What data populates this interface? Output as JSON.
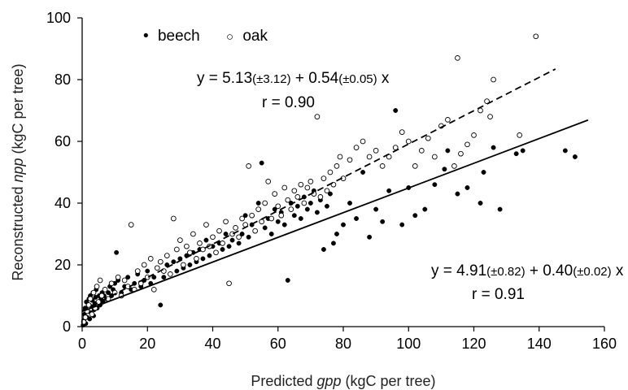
{
  "chart_data": {
    "type": "scatter",
    "title": "",
    "xlabel": {
      "prefix": "Predicted ",
      "variable": "gpp",
      "suffix": " (kgC per tree)"
    },
    "ylabel": {
      "prefix": "Reconstructed ",
      "variable": "npp",
      "suffix": " (kgC per tree)"
    },
    "xlim": [
      0,
      160
    ],
    "ylim": [
      0,
      100
    ],
    "xticks": [
      0,
      20,
      40,
      60,
      80,
      100,
      120,
      140,
      160
    ],
    "yticks": [
      0,
      20,
      40,
      60,
      80,
      100
    ],
    "grid": false,
    "legend_position": "top-left",
    "legend": [
      {
        "symbol": "•",
        "label": "beech"
      },
      {
        "symbol": "○",
        "label": "oak"
      }
    ],
    "series": [
      {
        "name": "beech",
        "marker": "filled-circle",
        "color": "#000000",
        "points": [
          [
            0.3,
            0.5
          ],
          [
            0.5,
            2
          ],
          [
            0.7,
            4
          ],
          [
            0.9,
            6
          ],
          [
            1.1,
            1
          ],
          [
            1.3,
            8
          ],
          [
            1.5,
            3
          ],
          [
            1.7,
            5
          ],
          [
            1.9,
            7
          ],
          [
            2.1,
            9
          ],
          [
            2.3,
            2.5
          ],
          [
            2.5,
            10
          ],
          [
            2.7,
            4.5
          ],
          [
            2.9,
            6.5
          ],
          [
            3.1,
            8.5
          ],
          [
            3.3,
            11
          ],
          [
            3.5,
            3.5
          ],
          [
            3.7,
            5.5
          ],
          [
            3.9,
            7.5
          ],
          [
            4.1,
            9.5
          ],
          [
            4.3,
            12
          ],
          [
            4.6,
            6
          ],
          [
            4.9,
            8
          ],
          [
            5.2,
            10
          ],
          [
            5.5,
            7
          ],
          [
            5.8,
            9
          ],
          [
            6.1,
            11
          ],
          [
            6.4,
            8
          ],
          [
            6.7,
            10
          ],
          [
            7,
            12
          ],
          [
            7.5,
            9
          ],
          [
            8,
            11
          ],
          [
            8.5,
            13
          ],
          [
            9,
            10
          ],
          [
            9.5,
            12
          ],
          [
            10,
            14
          ],
          [
            10.5,
            24
          ],
          [
            11,
            15
          ],
          [
            12,
            11
          ],
          [
            13,
            13
          ],
          [
            14,
            16
          ],
          [
            15,
            12
          ],
          [
            16,
            14
          ],
          [
            17,
            17
          ],
          [
            18,
            13
          ],
          [
            19,
            15
          ],
          [
            20,
            18
          ],
          [
            21,
            14
          ],
          [
            22,
            16
          ],
          [
            23,
            19
          ],
          [
            24,
            7
          ],
          [
            25,
            16
          ],
          [
            26,
            20
          ],
          [
            27,
            17
          ],
          [
            28,
            21
          ],
          [
            29,
            18
          ],
          [
            30,
            22
          ],
          [
            31,
            19
          ],
          [
            32,
            23
          ],
          [
            33,
            20
          ],
          [
            34,
            24
          ],
          [
            35,
            21
          ],
          [
            36,
            25
          ],
          [
            37,
            22
          ],
          [
            38,
            28
          ],
          [
            39,
            23
          ],
          [
            40,
            26
          ],
          [
            41,
            24
          ],
          [
            42,
            27
          ],
          [
            43,
            25
          ],
          [
            44,
            30
          ],
          [
            45,
            26
          ],
          [
            46,
            28
          ],
          [
            47,
            32
          ],
          [
            48,
            27
          ],
          [
            49,
            30
          ],
          [
            50,
            36
          ],
          [
            51,
            29
          ],
          [
            52,
            33
          ],
          [
            53,
            31
          ],
          [
            54,
            40
          ],
          [
            55,
            53
          ],
          [
            56,
            32
          ],
          [
            57,
            35
          ],
          [
            58,
            30
          ],
          [
            59,
            38
          ],
          [
            60,
            34
          ],
          [
            61,
            37
          ],
          [
            62,
            33
          ],
          [
            63,
            15
          ],
          [
            64,
            40
          ],
          [
            65,
            36
          ],
          [
            66,
            39
          ],
          [
            67,
            35
          ],
          [
            68,
            42
          ],
          [
            69,
            38
          ],
          [
            70,
            40
          ],
          [
            71,
            44
          ],
          [
            72,
            37
          ],
          [
            73,
            41
          ],
          [
            74,
            25
          ],
          [
            75,
            39
          ],
          [
            76,
            43
          ],
          [
            77,
            27
          ],
          [
            78,
            30
          ],
          [
            80,
            33
          ],
          [
            82,
            40
          ],
          [
            84,
            35
          ],
          [
            86,
            50
          ],
          [
            88,
            29
          ],
          [
            90,
            38
          ],
          [
            92,
            34
          ],
          [
            94,
            44
          ],
          [
            96,
            70
          ],
          [
            98,
            33
          ],
          [
            100,
            45
          ],
          [
            102,
            36
          ],
          [
            105,
            38
          ],
          [
            108,
            46
          ],
          [
            111,
            51
          ],
          [
            112,
            57
          ],
          [
            115,
            43
          ],
          [
            118,
            45
          ],
          [
            122,
            40
          ],
          [
            123,
            50
          ],
          [
            126,
            58
          ],
          [
            128,
            38
          ],
          [
            133,
            56
          ],
          [
            135,
            57
          ],
          [
            148,
            57
          ],
          [
            151,
            55
          ]
        ]
      },
      {
        "name": "oak",
        "marker": "open-circle",
        "color": "#000000",
        "points": [
          [
            0.5,
            1.5
          ],
          [
            1,
            3
          ],
          [
            1.5,
            5
          ],
          [
            2,
            7
          ],
          [
            2.5,
            9
          ],
          [
            3,
            4
          ],
          [
            3.5,
            11
          ],
          [
            4,
            6
          ],
          [
            4.5,
            13
          ],
          [
            5,
            8
          ],
          [
            5.5,
            15
          ],
          [
            6,
            10
          ],
          [
            7,
            12
          ],
          [
            8,
            9
          ],
          [
            9,
            14
          ],
          [
            10,
            11
          ],
          [
            11,
            16
          ],
          [
            12,
            10
          ],
          [
            13,
            15
          ],
          [
            14,
            13
          ],
          [
            15,
            33
          ],
          [
            16,
            12
          ],
          [
            17,
            18
          ],
          [
            18,
            14
          ],
          [
            19,
            20
          ],
          [
            20,
            16
          ],
          [
            21,
            22
          ],
          [
            22,
            12
          ],
          [
            23,
            19
          ],
          [
            24,
            21
          ],
          [
            25,
            18
          ],
          [
            26,
            23
          ],
          [
            27,
            17
          ],
          [
            28,
            35
          ],
          [
            29,
            25
          ],
          [
            30,
            28
          ],
          [
            31,
            20
          ],
          [
            32,
            26
          ],
          [
            33,
            24
          ],
          [
            34,
            30
          ],
          [
            35,
            22
          ],
          [
            36,
            27
          ],
          [
            37,
            25
          ],
          [
            38,
            33
          ],
          [
            39,
            26
          ],
          [
            40,
            29
          ],
          [
            41,
            24
          ],
          [
            42,
            31
          ],
          [
            43,
            27
          ],
          [
            44,
            34
          ],
          [
            45,
            14
          ],
          [
            46,
            30
          ],
          [
            47,
            32
          ],
          [
            48,
            29
          ],
          [
            49,
            35
          ],
          [
            50,
            33
          ],
          [
            51,
            52
          ],
          [
            52,
            36
          ],
          [
            53,
            31
          ],
          [
            54,
            38
          ],
          [
            55,
            34
          ],
          [
            56,
            40
          ],
          [
            57,
            47
          ],
          [
            58,
            35
          ],
          [
            59,
            43
          ],
          [
            60,
            39
          ],
          [
            61,
            36
          ],
          [
            62,
            45
          ],
          [
            63,
            41
          ],
          [
            64,
            38
          ],
          [
            65,
            44
          ],
          [
            66,
            42
          ],
          [
            67,
            46
          ],
          [
            68,
            40
          ],
          [
            69,
            45
          ],
          [
            70,
            47
          ],
          [
            71,
            43
          ],
          [
            72,
            68
          ],
          [
            73,
            42
          ],
          [
            74,
            48
          ],
          [
            75,
            44
          ],
          [
            76,
            50
          ],
          [
            77,
            46
          ],
          [
            78,
            52
          ],
          [
            79,
            55
          ],
          [
            80,
            48
          ],
          [
            82,
            54
          ],
          [
            84,
            58
          ],
          [
            86,
            60
          ],
          [
            88,
            55
          ],
          [
            90,
            57
          ],
          [
            92,
            52
          ],
          [
            94,
            55
          ],
          [
            96,
            58
          ],
          [
            98,
            63
          ],
          [
            100,
            60
          ],
          [
            102,
            52
          ],
          [
            104,
            57
          ],
          [
            106,
            61
          ],
          [
            108,
            55
          ],
          [
            110,
            65
          ],
          [
            112,
            67
          ],
          [
            114,
            52
          ],
          [
            116,
            56
          ],
          [
            118,
            59
          ],
          [
            120,
            62
          ],
          [
            122,
            70
          ],
          [
            124,
            73
          ],
          [
            125,
            68
          ],
          [
            126,
            80
          ],
          [
            134,
            62
          ],
          [
            115,
            87
          ],
          [
            139,
            94
          ]
        ]
      }
    ],
    "fits": [
      {
        "series": "oak",
        "style": "dashed",
        "intercept": 5.13,
        "slope": 0.54,
        "x_range": [
          0,
          145
        ],
        "equation": {
          "a": "y = 5.13",
          "ase": "(±3.12)",
          "b": " + 0.54",
          "bse": "(±0.05)",
          "x": " x"
        },
        "r_text": "r = 0.90"
      },
      {
        "series": "beech",
        "style": "solid",
        "intercept": 4.91,
        "slope": 0.4,
        "x_range": [
          0,
          155
        ],
        "equation": {
          "a": "y = 4.91",
          "ase": "(±0.82)",
          "b": "  + 0.40",
          "bse": "(±0.02)",
          "x": " x"
        },
        "r_text": "r = 0.91"
      }
    ]
  }
}
